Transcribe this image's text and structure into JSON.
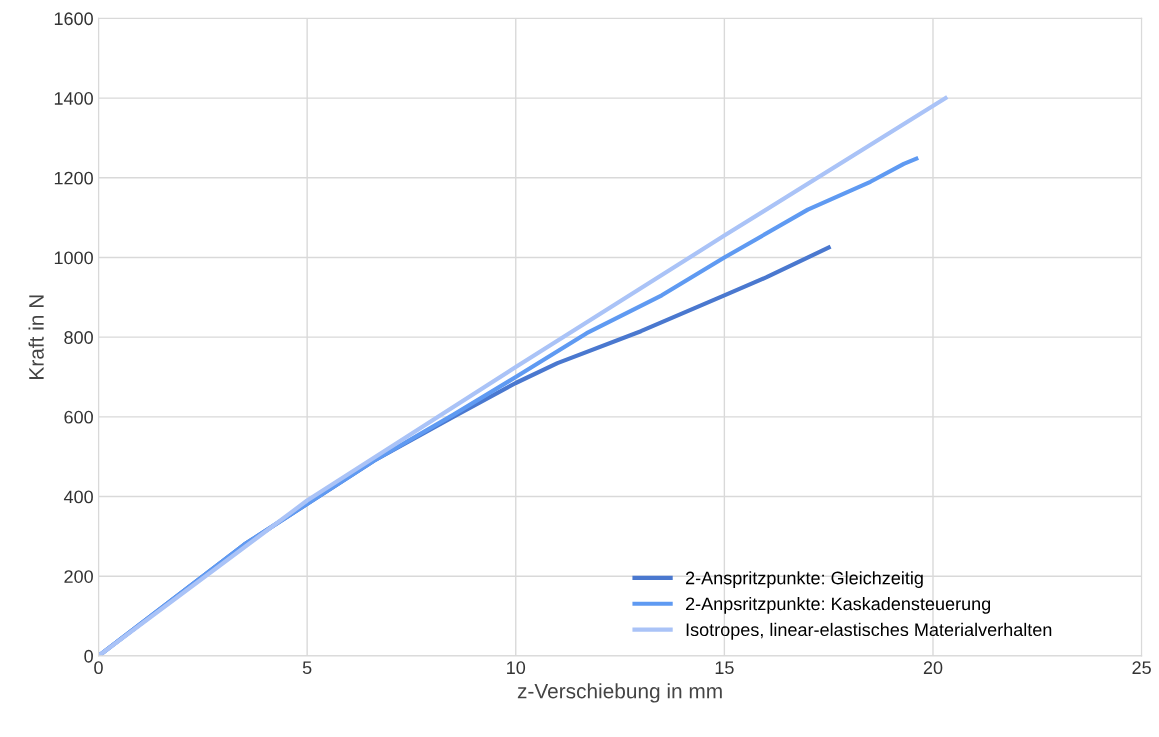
{
  "chart_data": {
    "type": "line",
    "xlabel": "z-Verschiebung in mm",
    "ylabel": "Kraft in N",
    "xlim": [
      0,
      25
    ],
    "xticks": [
      0,
      5,
      10,
      15,
      20,
      25
    ],
    "ylim": [
      0,
      1600
    ],
    "yticks": [
      0,
      200,
      400,
      600,
      800,
      1000,
      1200,
      1400,
      1600
    ],
    "grid": true,
    "legend": "bottom right",
    "marker": "none",
    "line_style": "solid",
    "series": [
      {
        "name": "2-Anspritzpunkte: Gleichzeitig",
        "color": "#4a78cf",
        "x": [
          0,
          3.5,
          6.6,
          8.5,
          10,
          11,
          13,
          15,
          16,
          17.5
        ],
        "values": [
          0,
          280,
          490,
          600,
          685,
          735,
          815,
          905,
          950,
          1025
        ]
      },
      {
        "name": "2-Anpsritzpunkte: Kaskadensteuerung",
        "color": "#5f9af2",
        "x": [
          0,
          3.5,
          6.6,
          8.5,
          10,
          11.7,
          13.5,
          15,
          17,
          18.5,
          19.3,
          19.6
        ],
        "values": [
          0,
          280,
          490,
          605,
          700,
          810,
          905,
          1000,
          1120,
          1190,
          1235,
          1248
        ]
      },
      {
        "name": "Isotropes, linear-elastisches Materialverhalten",
        "color": "#aac3f7",
        "x": [
          0,
          5,
          10,
          15,
          20.3
        ],
        "values": [
          0,
          390,
          725,
          1055,
          1400
        ]
      }
    ]
  }
}
